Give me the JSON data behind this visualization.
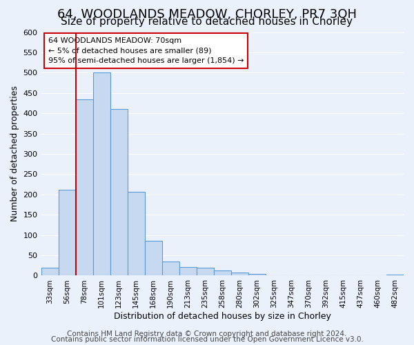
{
  "title": "64, WOODLANDS MEADOW, CHORLEY, PR7 3QH",
  "subtitle": "Size of property relative to detached houses in Chorley",
  "xlabel": "Distribution of detached houses by size in Chorley",
  "ylabel": "Number of detached properties",
  "bar_labels": [
    "33sqm",
    "56sqm",
    "78sqm",
    "101sqm",
    "123sqm",
    "145sqm",
    "168sqm",
    "190sqm",
    "213sqm",
    "235sqm",
    "258sqm",
    "280sqm",
    "302sqm",
    "325sqm",
    "347sqm",
    "370sqm",
    "392sqm",
    "415sqm",
    "437sqm",
    "460sqm",
    "482sqm"
  ],
  "bar_heights": [
    20,
    212,
    435,
    500,
    410,
    207,
    85,
    35,
    22,
    20,
    13,
    8,
    4,
    1,
    0,
    0,
    0,
    0,
    0,
    0,
    3
  ],
  "bar_color": "#c6d9f0",
  "bar_edge_color": "#5b9bd5",
  "vline_pos": 1.5,
  "vline_color": "#cc0000",
  "ylim": [
    0,
    600
  ],
  "yticks": [
    0,
    50,
    100,
    150,
    200,
    250,
    300,
    350,
    400,
    450,
    500,
    550,
    600
  ],
  "annotation_title": "64 WOODLANDS MEADOW: 70sqm",
  "annotation_line1": "← 5% of detached houses are smaller (89)",
  "annotation_line2": "95% of semi-detached houses are larger (1,854) →",
  "annotation_box_color": "#ffffff",
  "annotation_box_edge": "#cc0000",
  "footer1": "Contains HM Land Registry data © Crown copyright and database right 2024.",
  "footer2": "Contains public sector information licensed under the Open Government Licence v3.0.",
  "background_color": "#eaf1fb",
  "plot_background": "#eaf1fb",
  "grid_color": "#ffffff",
  "title_fontsize": 13,
  "subtitle_fontsize": 11,
  "footer_fontsize": 7.5
}
